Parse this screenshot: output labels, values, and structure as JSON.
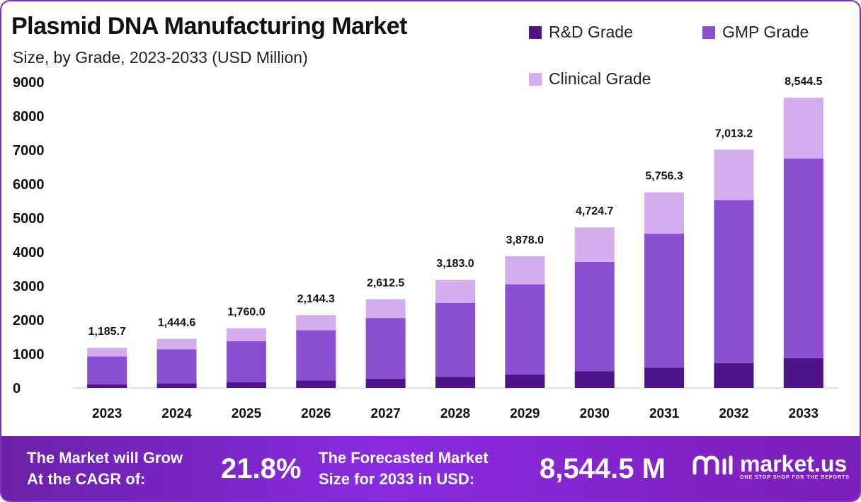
{
  "header": {
    "title": "Plasmid DNA Manufacturing Market",
    "subtitle": "Size, by Grade, 2023-2033 (USD Million)"
  },
  "colors": {
    "rd": "#4f1487",
    "gmp": "#8a4fd0",
    "clinical": "#d3aeee",
    "brand": "#7b2fbe"
  },
  "legend": [
    {
      "label": "R&D Grade",
      "color_key": "rd"
    },
    {
      "label": "GMP Grade",
      "color_key": "gmp"
    },
    {
      "label": "Clinical Grade",
      "color_key": "clinical"
    }
  ],
  "chart_data": {
    "type": "bar",
    "stacked": true,
    "title": "Plasmid DNA Manufacturing Market",
    "subtitle": "Size, by Grade, 2023-2033 (USD Million)",
    "xlabel": "",
    "ylabel": "",
    "ylim": [
      0,
      9000
    ],
    "yticks": [
      0,
      1000,
      2000,
      3000,
      4000,
      5000,
      6000,
      7000,
      8000,
      9000
    ],
    "categories": [
      "2023",
      "2024",
      "2025",
      "2026",
      "2027",
      "2028",
      "2029",
      "2030",
      "2031",
      "2032",
      "2033"
    ],
    "series": [
      {
        "name": "R&D Grade",
        "values": [
          110,
          140,
          170,
          220,
          270,
          330,
          400,
          490,
          600,
          730,
          880
        ]
      },
      {
        "name": "GMP Grade",
        "values": [
          820,
          1000,
          1210,
          1480,
          1790,
          2170,
          2650,
          3220,
          3940,
          4800,
          5870
        ]
      },
      {
        "name": "Clinical Grade",
        "values": [
          255.7,
          304.6,
          380.0,
          444.3,
          552.5,
          683.0,
          828.0,
          1014.7,
          1216.3,
          1483.2,
          1794.5
        ]
      }
    ],
    "totals": [
      1185.7,
      1444.6,
      1760.0,
      2144.3,
      2612.5,
      3183.0,
      3878.0,
      4724.7,
      5756.3,
      7013.2,
      8544.5
    ],
    "total_labels": [
      "1,185.7",
      "1,444.6",
      "1,760.0",
      "2,144.3",
      "2,612.5",
      "3,183.0",
      "3,878.0",
      "4,724.7",
      "5,756.3",
      "7,013.2",
      "8,544.5"
    ],
    "grid": false,
    "legend_position": "top-right"
  },
  "footer": {
    "cagr_text_line1": "The Market will Grow",
    "cagr_text_line2": "At the CAGR of:",
    "cagr_value": "21.8%",
    "forecast_text_line1": "The Forecasted Market",
    "forecast_text_line2": "Size for 2033 in USD:",
    "forecast_value": "8,544.5 M",
    "logo_name": "market.us",
    "logo_tagline": "ONE STOP SHOP FOR THE REPORTS",
    "logo_icon": "market-us-logo-icon"
  }
}
